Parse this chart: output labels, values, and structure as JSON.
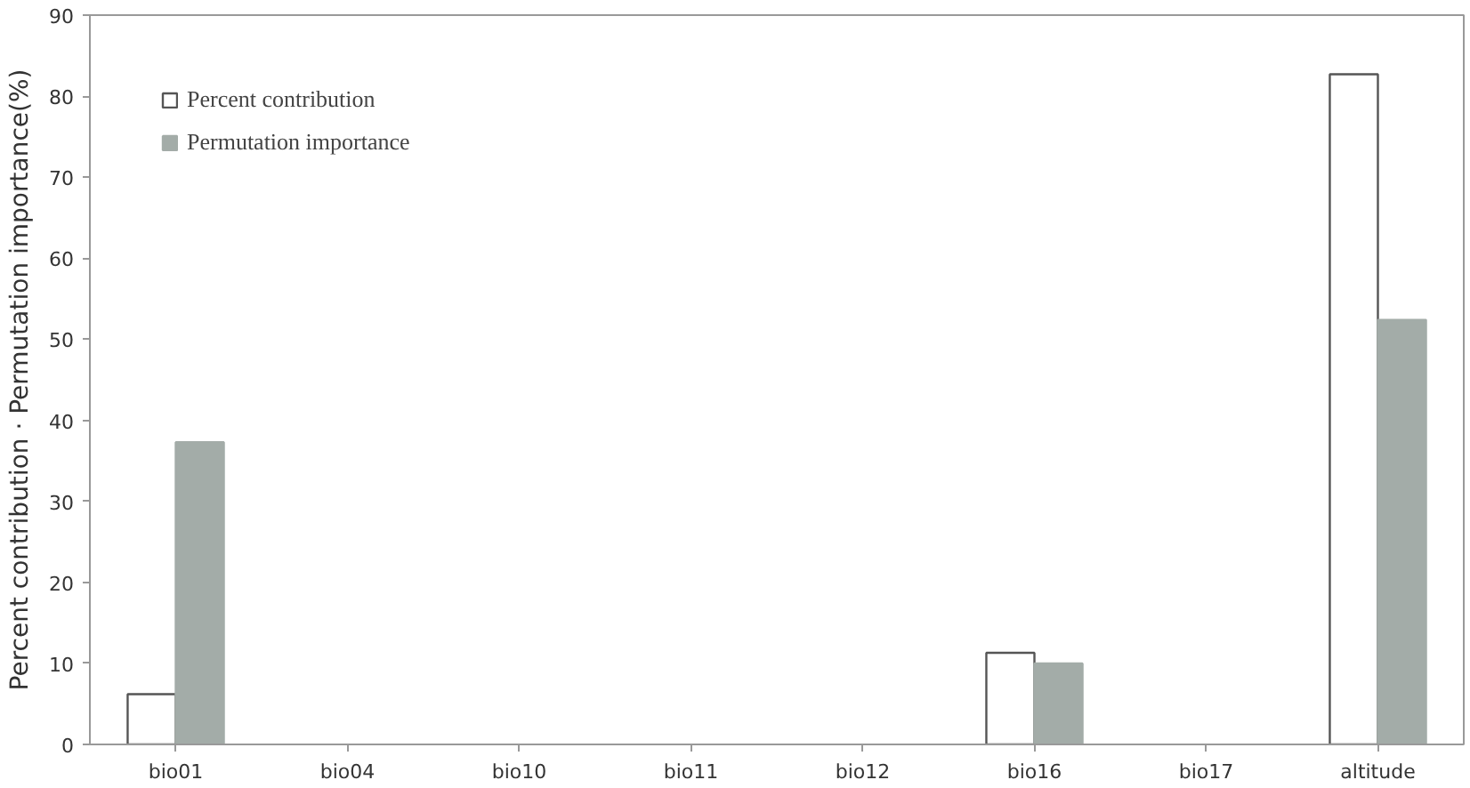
{
  "chart_data": {
    "type": "bar",
    "ylabel": "Percent contribution · Permutation importance(%)",
    "categories": [
      "bio01",
      "bio04",
      "bio10",
      "bio11",
      "bio12",
      "bio16",
      "bio17",
      "altitude"
    ],
    "series": [
      {
        "name": "Percent contribution",
        "color": "#ffffff",
        "values": [
          6.2,
          null,
          null,
          null,
          null,
          11.3,
          null,
          82.7
        ]
      },
      {
        "name": "Permutation importance",
        "color": "#a3aca8",
        "values": [
          37.3,
          null,
          null,
          null,
          null,
          10.0,
          null,
          52.4
        ]
      }
    ],
    "ylim": [
      0,
      90
    ],
    "yticks": [
      0,
      10,
      20,
      30,
      40,
      50,
      60,
      70,
      80,
      90
    ],
    "grid": false,
    "legend": "top left"
  }
}
